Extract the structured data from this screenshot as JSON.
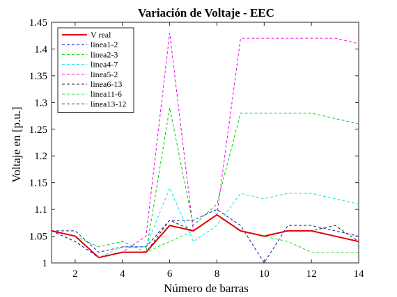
{
  "chart_data": {
    "type": "line",
    "title": "Variación de Voltaje - EEC",
    "xlabel": "Número de barras",
    "ylabel": "Voltaje en [p.u.]",
    "xlim": [
      1,
      14
    ],
    "ylim": [
      1,
      1.45
    ],
    "xticks": [
      "2",
      "4",
      "6",
      "8",
      "10",
      "12",
      "14"
    ],
    "yticks": [
      "1",
      "1.05",
      "1.1",
      "1.15",
      "1.2",
      "1.25",
      "1.3",
      "1.35",
      "1.4",
      "1.45"
    ],
    "grid": false,
    "legend_position": "top-left",
    "x": [
      1,
      2,
      3,
      4,
      5,
      6,
      7,
      8,
      9,
      10,
      11,
      12,
      13,
      14
    ],
    "series": [
      {
        "name": "V real",
        "color": "#e00000",
        "style": "solid",
        "values": [
          1.06,
          1.05,
          1.01,
          1.02,
          1.02,
          1.07,
          1.06,
          1.09,
          1.06,
          1.05,
          1.06,
          1.06,
          1.05,
          1.04
        ]
      },
      {
        "name": "linea1-2",
        "color": "#0000d0",
        "style": "dashed",
        "values": [
          1.06,
          1.04,
          1.01,
          1.02,
          1.02,
          1.07,
          1.06,
          1.09,
          1.06,
          1.05,
          1.06,
          1.06,
          1.05,
          1.04
        ]
      },
      {
        "name": "linea2-3",
        "color": "#00cc00",
        "style": "dashed",
        "values": [
          1.06,
          1.05,
          1.03,
          1.04,
          1.02,
          1.29,
          1.07,
          1.11,
          1.28,
          1.28,
          1.28,
          1.28,
          1.27,
          1.26
        ]
      },
      {
        "name": "linea4-7",
        "color": "#00e5ee",
        "style": "dashed",
        "values": [
          1.06,
          1.05,
          1.01,
          1.03,
          1.03,
          1.14,
          1.04,
          1.07,
          1.13,
          1.12,
          1.13,
          1.13,
          1.12,
          1.11
        ]
      },
      {
        "name": "linea5-2",
        "color": "#ee00ee",
        "style": "dashed",
        "values": [
          1.06,
          1.05,
          1.01,
          1.02,
          1.05,
          1.43,
          1.06,
          1.09,
          1.42,
          1.42,
          1.42,
          1.42,
          1.42,
          1.41
        ]
      },
      {
        "name": "linea6-13",
        "color": "#222222",
        "style": "dashed",
        "values": [
          1.06,
          1.05,
          1.01,
          1.02,
          1.02,
          1.08,
          1.06,
          1.09,
          1.06,
          1.05,
          1.06,
          1.06,
          1.07,
          1.04
        ]
      },
      {
        "name": "linea11-6",
        "color": "#22dd22",
        "style": "dashed",
        "values": [
          1.06,
          1.05,
          1.01,
          1.02,
          1.02,
          1.04,
          1.06,
          1.09,
          1.06,
          1.05,
          1.04,
          1.02,
          1.02,
          1.02
        ]
      },
      {
        "name": "linea13-12",
        "color": "#1a1aa0",
        "style": "dashed",
        "values": [
          1.06,
          1.06,
          1.02,
          1.03,
          1.03,
          1.08,
          1.08,
          1.1,
          1.07,
          1.0,
          1.07,
          1.07,
          1.06,
          1.05
        ]
      }
    ]
  }
}
